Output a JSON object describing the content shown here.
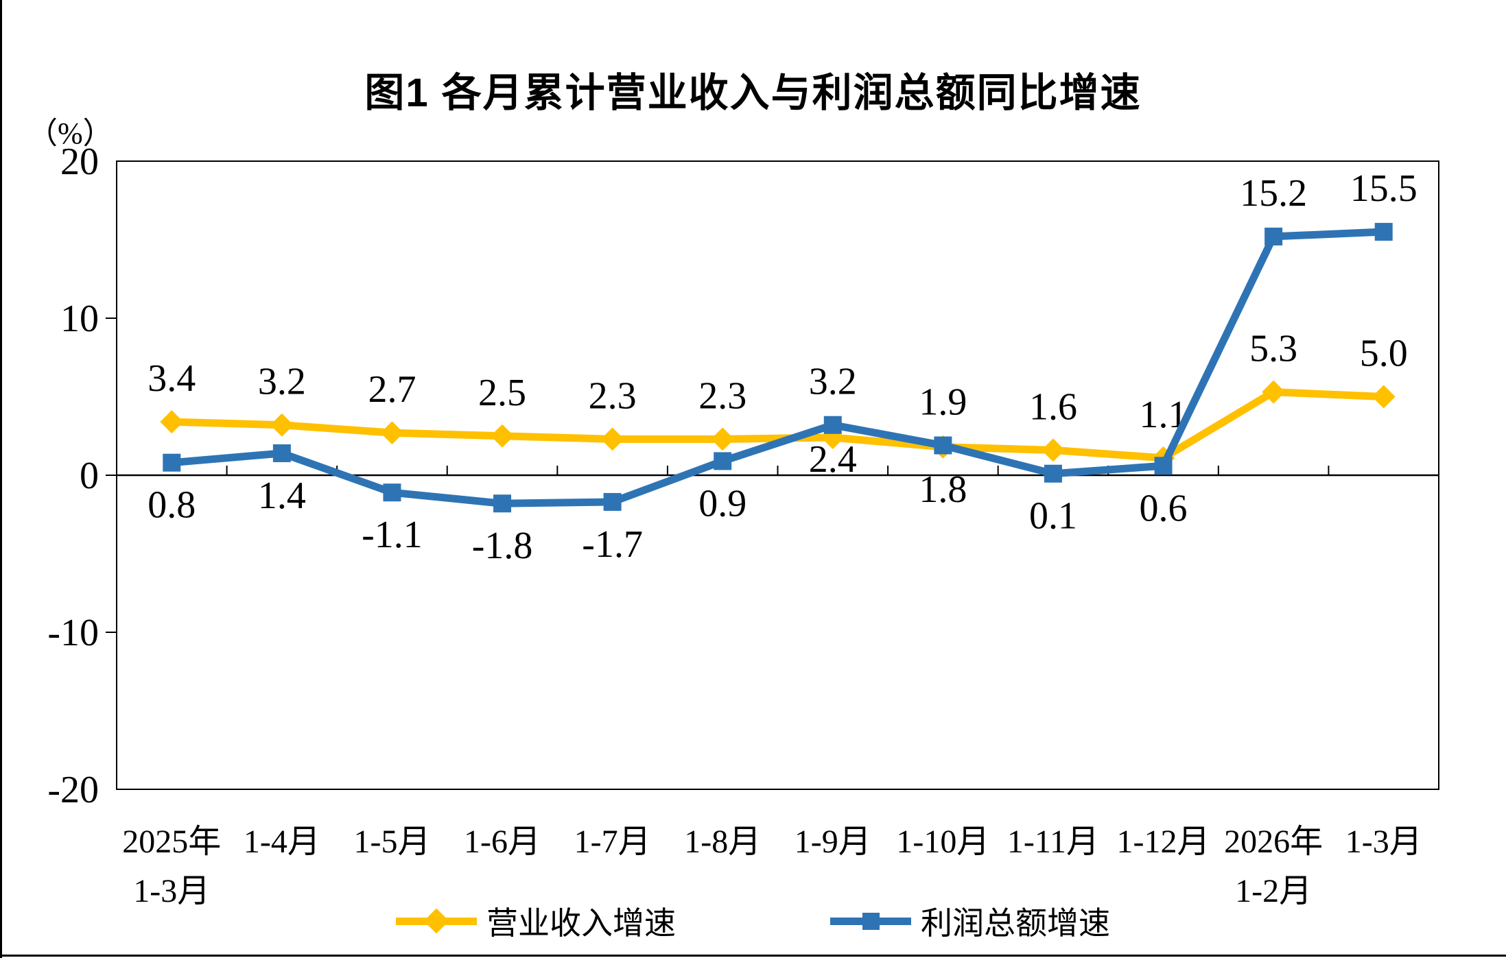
{
  "page": {
    "background": "#ffffff",
    "border_color": "#000000"
  },
  "chart": {
    "title": "图1 各月累计营业收入与利润总额同比增速",
    "unit_label": "（%）"
  },
  "chart_data": {
    "type": "line",
    "title": "图1 各月累计营业收入与利润总额同比增速",
    "ylabel": "（%）",
    "ylim": [
      -20,
      20
    ],
    "yticks": [
      20,
      10,
      0,
      -10,
      -20
    ],
    "grid": "zero-line-only",
    "legend_position": "bottom",
    "axis_color": "#000000",
    "categories": [
      [
        "2025年",
        "1-3月"
      ],
      [
        "1-4月"
      ],
      [
        "1-5月"
      ],
      [
        "1-6月"
      ],
      [
        "1-7月"
      ],
      [
        "1-8月"
      ],
      [
        "1-9月"
      ],
      [
        "1-10月"
      ],
      [
        "1-11月"
      ],
      [
        "1-12月"
      ],
      [
        "2026年",
        "1-2月"
      ],
      [
        "1-3月"
      ]
    ],
    "series": [
      {
        "name": "营业收入增速",
        "color": "#FFC000",
        "marker": "diamond",
        "values": [
          3.4,
          3.2,
          2.7,
          2.5,
          2.3,
          2.3,
          2.4,
          1.8,
          1.6,
          1.1,
          5.3,
          5.0
        ],
        "label_placement": [
          "above",
          "above",
          "above",
          "above",
          "above",
          "above",
          "below",
          "below",
          "above",
          "above",
          "above",
          "above"
        ]
      },
      {
        "name": "利润总额增速",
        "color": "#2E74B5",
        "marker": "square",
        "values": [
          0.8,
          1.4,
          -1.1,
          -1.8,
          -1.7,
          0.9,
          3.2,
          1.9,
          0.1,
          0.6,
          15.2,
          15.5
        ],
        "label_placement": [
          "below",
          "below",
          "below",
          "below",
          "below",
          "below",
          "above",
          "above",
          "below",
          "below",
          "above",
          "above"
        ]
      }
    ]
  }
}
